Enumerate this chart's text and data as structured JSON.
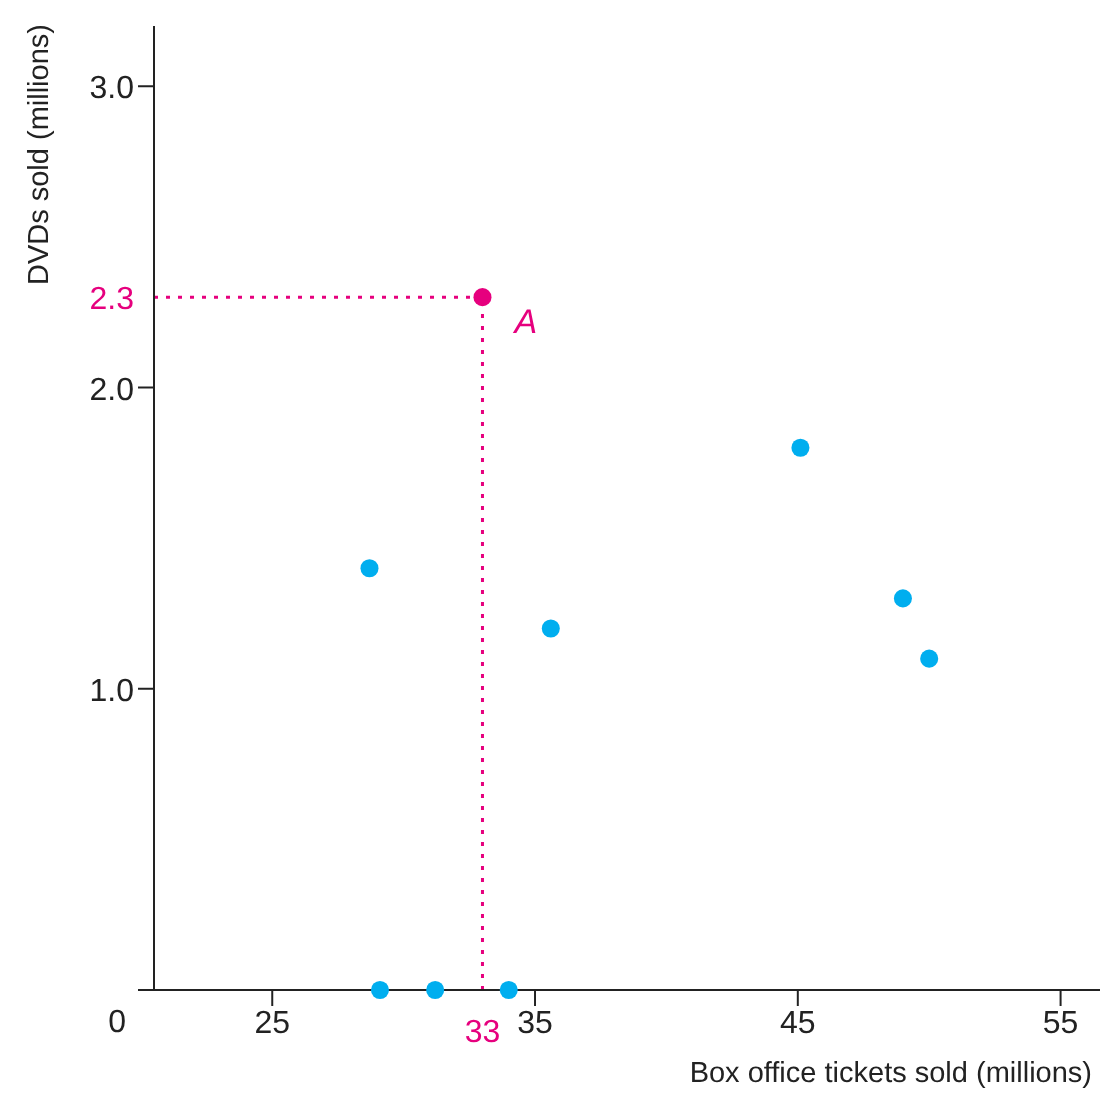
{
  "chart_data": {
    "type": "scatter",
    "xlabel": "Box office tickets sold (millions)",
    "ylabel": "DVDs sold (millions)",
    "xlim": [
      20.5,
      56.5
    ],
    "xticks": [
      25,
      35,
      45,
      55
    ],
    "ylim": [
      0,
      3.2
    ],
    "yticks": [
      {
        "value": 0,
        "label": "0"
      },
      {
        "value": 1,
        "label": "1.0"
      },
      {
        "value": 2,
        "label": "2.0"
      },
      {
        "value": 3,
        "label": "3.0"
      }
    ],
    "series": [
      {
        "color": "#00aeef",
        "x": [
          28.7,
          29.1,
          31.2,
          34,
          35.6,
          45.1,
          49,
          50
        ],
        "values": [
          1.4,
          0,
          0,
          0,
          1.2,
          1.8,
          1.3,
          1.1
        ]
      },
      {
        "color": "#e6007e",
        "x": [
          33
        ],
        "values": [
          2.3
        ]
      }
    ],
    "ref_lines": [
      {
        "axis": "x",
        "value": 33,
        "label": "33",
        "color": "#e6007e",
        "line_style": "dotted"
      },
      {
        "axis": "y",
        "value": 2.3,
        "label": "2.3",
        "color": "#e6007e",
        "line_style": "dotted"
      }
    ],
    "annotations": [
      {
        "text": "A",
        "x": 33,
        "y": 2.3
      }
    ],
    "marker": "circle",
    "grid": false,
    "legend": false
  }
}
